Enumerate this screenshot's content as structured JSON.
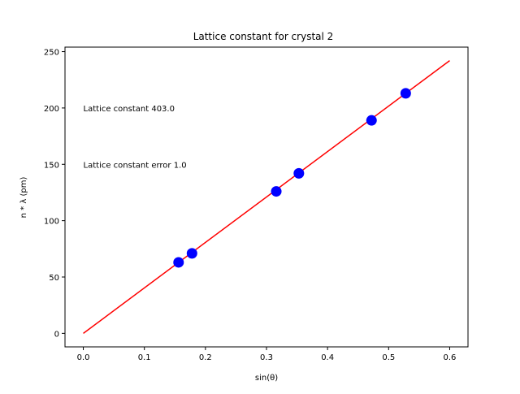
{
  "chart_data": {
    "type": "scatter",
    "title": "Lattice constant for crystal 2",
    "xlabel": "sin(θ)",
    "ylabel": "n * λ (pm)",
    "xlim": [
      -0.03,
      0.63
    ],
    "ylim": [
      -12,
      254
    ],
    "xticks": [
      0.0,
      0.1,
      0.2,
      0.3,
      0.4,
      0.5,
      0.6
    ],
    "xtick_labels": [
      "0.0",
      "0.1",
      "0.2",
      "0.3",
      "0.4",
      "0.5",
      "0.6"
    ],
    "yticks": [
      0,
      50,
      100,
      150,
      200,
      250
    ],
    "ytick_labels": [
      "0",
      "50",
      "100",
      "150",
      "200",
      "250"
    ],
    "grid": false,
    "series": [
      {
        "kind": "scatter",
        "color": "#0000ff",
        "x": [
          0.156,
          0.178,
          0.316,
          0.353,
          0.472,
          0.528
        ],
        "y": [
          63,
          71,
          126,
          142,
          189,
          213
        ]
      },
      {
        "kind": "line",
        "color": "#ff0000",
        "x": [
          0.0,
          0.6
        ],
        "y": [
          0,
          242
        ]
      }
    ],
    "annotations": [
      {
        "text": "Lattice constant 403.0",
        "x": 0.0,
        "y": 200
      },
      {
        "text": "Lattice constant error 1.0",
        "x": 0.0,
        "y": 150
      }
    ]
  }
}
